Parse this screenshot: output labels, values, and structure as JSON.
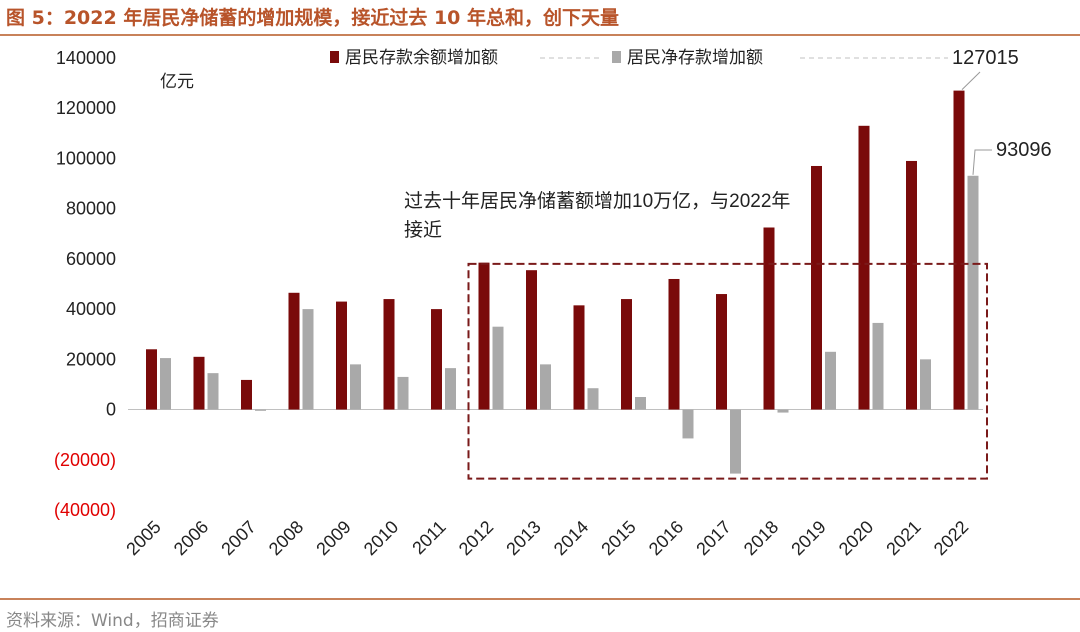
{
  "header": {
    "title": "图 5：2022 年居民净储蓄的增加规模，接近过去 10 年总和，创下天量"
  },
  "footer": {
    "source": "资料来源：Wind，招商证券"
  },
  "colors": {
    "series1": "#7a0a0a",
    "series2": "#a9a9a9",
    "negative_tick": "#e00000",
    "box": "#7a1a1a",
    "title": "#b8542a"
  },
  "chart_data": {
    "type": "bar",
    "unit_label": "亿元",
    "categories": [
      "2005",
      "2006",
      "2007",
      "2008",
      "2009",
      "2010",
      "2011",
      "2012",
      "2013",
      "2014",
      "2015",
      "2016",
      "2017",
      "2018",
      "2019",
      "2020",
      "2021",
      "2022"
    ],
    "series": [
      {
        "name": "居民存款余额增加额",
        "values": [
          24000,
          21000,
          11800,
          46500,
          43000,
          44000,
          40000,
          58500,
          55500,
          41500,
          44000,
          52000,
          46000,
          72500,
          97000,
          113000,
          99000,
          127015
        ]
      },
      {
        "name": "居民净存款增加额",
        "values": [
          20500,
          14500,
          -500,
          40000,
          18000,
          13000,
          16500,
          33000,
          18000,
          8500,
          5000,
          -11500,
          -25500,
          -1200,
          23000,
          34500,
          20000,
          93096
        ]
      }
    ],
    "ylim": [
      -40000,
      140000
    ],
    "yticks": [
      {
        "value": 140000,
        "label": "140000"
      },
      {
        "value": 120000,
        "label": "120000"
      },
      {
        "value": 100000,
        "label": "100000"
      },
      {
        "value": 80000,
        "label": "80000"
      },
      {
        "value": 60000,
        "label": "60000"
      },
      {
        "value": 40000,
        "label": "40000"
      },
      {
        "value": 20000,
        "label": "20000"
      },
      {
        "value": 0,
        "label": "0"
      },
      {
        "value": -20000,
        "label": "(20000)"
      },
      {
        "value": -40000,
        "label": "(40000)"
      }
    ],
    "data_labels": [
      {
        "text": "127015",
        "series": 0,
        "category": "2022"
      },
      {
        "text": "93096",
        "series": 1,
        "category": "2022"
      }
    ],
    "annotation": {
      "lines": [
        "过去十年居民净储蓄额增加10万亿，与2022年",
        "接近"
      ],
      "box_from": "2012",
      "box_to": "2022",
      "box_ymax": 58000,
      "box_ymin": -27500
    },
    "legend": {
      "position": "top",
      "entries": [
        "居民存款余额增加额",
        "居民净存款增加额"
      ]
    }
  }
}
